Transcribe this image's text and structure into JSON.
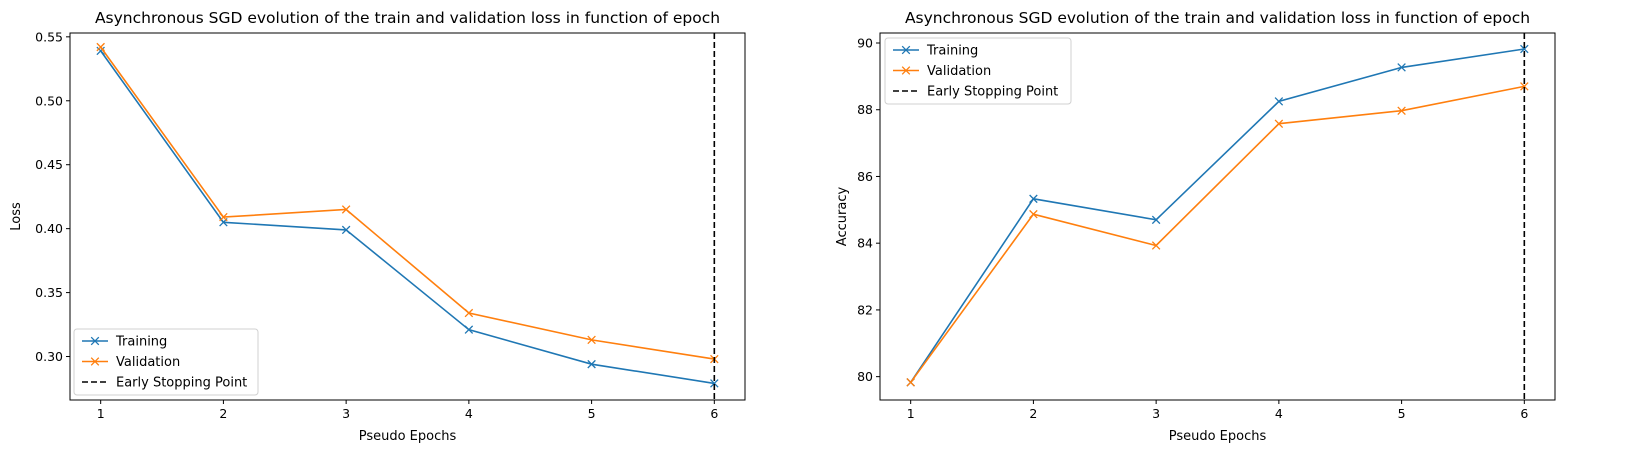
{
  "colors": {
    "training": "#1f77b4",
    "validation": "#ff7f0e",
    "early_stop": "#000000"
  },
  "chart_data": [
    {
      "type": "line",
      "title": "Asynchronous SGD evolution of the train and validation loss in function of epoch",
      "xlabel": "Pseudo Epochs",
      "ylabel": "Loss",
      "x": [
        1,
        2,
        3,
        4,
        5,
        6
      ],
      "xticks": [
        "1",
        "2",
        "3",
        "4",
        "5",
        "6"
      ],
      "xlim": [
        0.75,
        6.25
      ],
      "ylim": [
        0.266,
        0.553
      ],
      "yticks": [
        "0.30",
        "0.35",
        "0.40",
        "0.45",
        "0.50",
        "0.55"
      ],
      "series": [
        {
          "name": "Training",
          "values": [
            0.539,
            0.405,
            0.399,
            0.321,
            0.294,
            0.279
          ]
        },
        {
          "name": "Validation",
          "values": [
            0.542,
            0.409,
            0.415,
            0.334,
            0.313,
            0.298
          ]
        }
      ],
      "vline": {
        "x": 6,
        "name": "Early Stopping Point"
      },
      "legend": "lower-left",
      "grid": false
    },
    {
      "type": "line",
      "title": "Asynchronous SGD evolution of the train and validation loss in function of epoch",
      "xlabel": "Pseudo Epochs",
      "ylabel": "Accuracy",
      "x": [
        1,
        2,
        3,
        4,
        5,
        6
      ],
      "xticks": [
        "1",
        "2",
        "3",
        "4",
        "5",
        "6"
      ],
      "xlim": [
        0.75,
        6.25
      ],
      "ylim": [
        79.3,
        90.3
      ],
      "yticks": [
        "80",
        "82",
        "84",
        "86",
        "88",
        "90"
      ],
      "series": [
        {
          "name": "Training",
          "values": [
            79.83,
            85.33,
            84.7,
            88.25,
            89.27,
            89.82
          ]
        },
        {
          "name": "Validation",
          "values": [
            79.83,
            84.87,
            83.93,
            87.58,
            87.97,
            88.7
          ]
        }
      ],
      "vline": {
        "x": 6,
        "name": "Early Stopping Point"
      },
      "legend": "upper-left",
      "grid": false
    }
  ]
}
